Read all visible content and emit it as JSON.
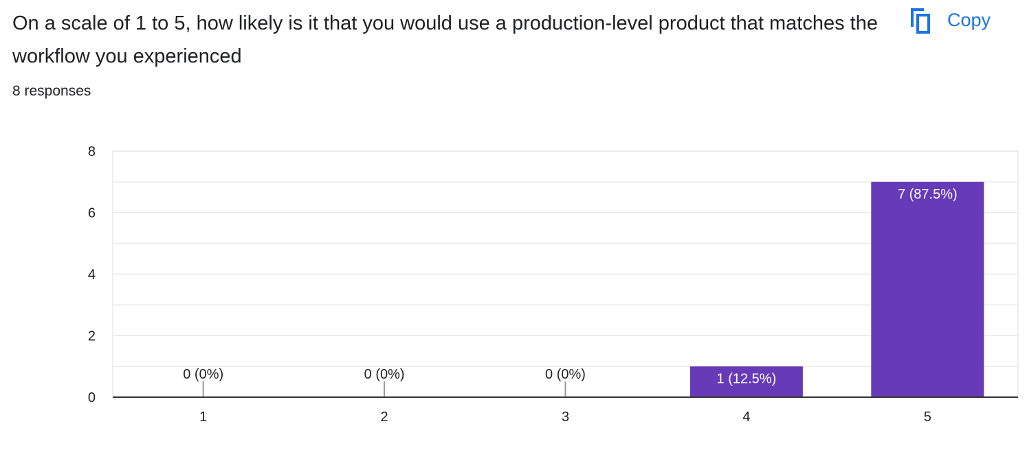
{
  "question": {
    "title": "On a scale of 1 to 5, how likely is it that you would use a production-level product that matches the workflow you experienced",
    "response_count": "8 responses"
  },
  "copy_action": {
    "label": "Copy",
    "icon": "copy-icon"
  },
  "colors": {
    "bar": "#673ab7",
    "accent": "#1a73e8",
    "text": "#202124",
    "grid": "#e8e8e8",
    "axis": "#333333"
  },
  "chart_data": {
    "type": "bar",
    "categories": [
      "1",
      "2",
      "3",
      "4",
      "5"
    ],
    "values": [
      0,
      0,
      0,
      1,
      7
    ],
    "data_labels": [
      "0 (0%)",
      "0 (0%)",
      "0 (0%)",
      "1 (12.5%)",
      "7 (87.5%)"
    ],
    "y_ticks": [
      "0",
      "2",
      "4",
      "6",
      "8"
    ],
    "ylim": [
      0,
      8
    ],
    "title": "",
    "xlabel": "",
    "ylabel": "",
    "grid": true,
    "legend": "none"
  }
}
